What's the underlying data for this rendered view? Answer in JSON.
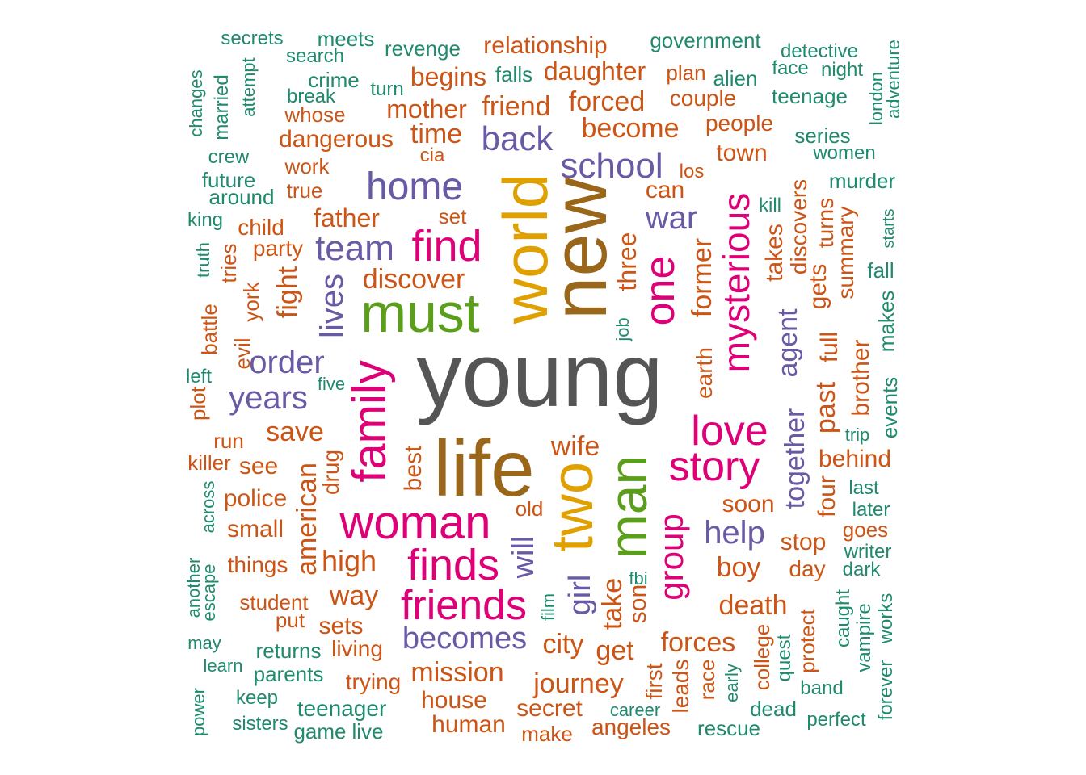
{
  "palette": {
    "gray": "#555555",
    "brown": "#99661a",
    "gold": "#e0a000",
    "green": "#5a9e1c",
    "magenta": "#dd0077",
    "purple": "#6a5aa5",
    "orange": "#cc5515",
    "teal": "#1f8a6e"
  },
  "words": [
    {
      "text": "young",
      "color": "gray"
    },
    {
      "text": "life",
      "color": "brown"
    },
    {
      "text": "new",
      "color": "brown"
    },
    {
      "text": "world",
      "color": "gold"
    },
    {
      "text": "two",
      "color": "gold"
    },
    {
      "text": "must",
      "color": "green"
    },
    {
      "text": "man",
      "color": "green"
    },
    {
      "text": "family",
      "color": "magenta"
    },
    {
      "text": "woman",
      "color": "magenta"
    },
    {
      "text": "find",
      "color": "magenta"
    },
    {
      "text": "friends",
      "color": "magenta"
    },
    {
      "text": "finds",
      "color": "magenta"
    },
    {
      "text": "story",
      "color": "magenta"
    },
    {
      "text": "love",
      "color": "magenta"
    },
    {
      "text": "one",
      "color": "magenta"
    },
    {
      "text": "mysterious",
      "color": "magenta"
    },
    {
      "text": "group",
      "color": "magenta"
    },
    {
      "text": "home",
      "color": "purple"
    },
    {
      "text": "school",
      "color": "purple"
    },
    {
      "text": "back",
      "color": "purple"
    },
    {
      "text": "team",
      "color": "purple"
    },
    {
      "text": "war",
      "color": "purple"
    },
    {
      "text": "order",
      "color": "purple"
    },
    {
      "text": "years",
      "color": "purple"
    },
    {
      "text": "lives",
      "color": "purple"
    },
    {
      "text": "becomes",
      "color": "purple"
    },
    {
      "text": "help",
      "color": "purple"
    },
    {
      "text": "will",
      "color": "purple"
    },
    {
      "text": "girl",
      "color": "purple"
    },
    {
      "text": "together",
      "color": "purple"
    },
    {
      "text": "agent",
      "color": "purple"
    },
    {
      "text": "relationship",
      "color": "orange"
    },
    {
      "text": "daughter",
      "color": "orange"
    },
    {
      "text": "begins",
      "color": "orange"
    },
    {
      "text": "mother",
      "color": "orange"
    },
    {
      "text": "friend",
      "color": "orange"
    },
    {
      "text": "forced",
      "color": "orange"
    },
    {
      "text": "become",
      "color": "orange"
    },
    {
      "text": "time",
      "color": "orange"
    },
    {
      "text": "dangerous",
      "color": "orange"
    },
    {
      "text": "whose",
      "color": "orange"
    },
    {
      "text": "work",
      "color": "orange"
    },
    {
      "text": "true",
      "color": "orange"
    },
    {
      "text": "father",
      "color": "orange"
    },
    {
      "text": "child",
      "color": "orange"
    },
    {
      "text": "party",
      "color": "orange"
    },
    {
      "text": "set",
      "color": "orange"
    },
    {
      "text": "discover",
      "color": "orange"
    },
    {
      "text": "can",
      "color": "orange"
    },
    {
      "text": "town",
      "color": "orange"
    },
    {
      "text": "plan",
      "color": "orange"
    },
    {
      "text": "couple",
      "color": "orange"
    },
    {
      "text": "people",
      "color": "orange"
    },
    {
      "text": "los",
      "color": "orange"
    },
    {
      "text": "cia",
      "color": "orange"
    },
    {
      "text": "three",
      "color": "orange"
    },
    {
      "text": "former",
      "color": "orange"
    },
    {
      "text": "fight",
      "color": "orange"
    },
    {
      "text": "takes",
      "color": "orange"
    },
    {
      "text": "discovers",
      "color": "orange"
    },
    {
      "text": "turns",
      "color": "orange"
    },
    {
      "text": "gets",
      "color": "orange"
    },
    {
      "text": "summary",
      "color": "orange"
    },
    {
      "text": "save",
      "color": "orange"
    },
    {
      "text": "wife",
      "color": "orange"
    },
    {
      "text": "earth",
      "color": "orange"
    },
    {
      "text": "full",
      "color": "orange"
    },
    {
      "text": "past",
      "color": "orange"
    },
    {
      "text": "brother",
      "color": "orange"
    },
    {
      "text": "behind",
      "color": "orange"
    },
    {
      "text": "four",
      "color": "orange"
    },
    {
      "text": "soon",
      "color": "orange"
    },
    {
      "text": "stop",
      "color": "orange"
    },
    {
      "text": "boy",
      "color": "orange"
    },
    {
      "text": "day",
      "color": "orange"
    },
    {
      "text": "death",
      "color": "orange"
    },
    {
      "text": "see",
      "color": "orange"
    },
    {
      "text": "police",
      "color": "orange"
    },
    {
      "text": "small",
      "color": "orange"
    },
    {
      "text": "things",
      "color": "orange"
    },
    {
      "text": "high",
      "color": "orange"
    },
    {
      "text": "way",
      "color": "orange"
    },
    {
      "text": "sets",
      "color": "orange"
    },
    {
      "text": "american",
      "color": "orange"
    },
    {
      "text": "drug",
      "color": "orange"
    },
    {
      "text": "best",
      "color": "orange"
    },
    {
      "text": "old",
      "color": "orange"
    },
    {
      "text": "city",
      "color": "orange"
    },
    {
      "text": "take",
      "color": "orange"
    },
    {
      "text": "son",
      "color": "orange"
    },
    {
      "text": "get",
      "color": "orange"
    },
    {
      "text": "forces",
      "color": "orange"
    },
    {
      "text": "mission",
      "color": "orange"
    },
    {
      "text": "journey",
      "color": "orange"
    },
    {
      "text": "house",
      "color": "orange"
    },
    {
      "text": "secret",
      "color": "orange"
    },
    {
      "text": "human",
      "color": "orange"
    },
    {
      "text": "make",
      "color": "orange"
    },
    {
      "text": "angeles",
      "color": "orange"
    },
    {
      "text": "living",
      "color": "orange"
    },
    {
      "text": "trying",
      "color": "orange"
    },
    {
      "text": "put",
      "color": "orange"
    },
    {
      "text": "student",
      "color": "orange"
    },
    {
      "text": "run",
      "color": "orange"
    },
    {
      "text": "killer",
      "color": "orange"
    },
    {
      "text": "plot",
      "color": "orange"
    },
    {
      "text": "evil",
      "color": "orange"
    },
    {
      "text": "york",
      "color": "orange"
    },
    {
      "text": "tries",
      "color": "orange"
    },
    {
      "text": "battle",
      "color": "orange"
    },
    {
      "text": "first",
      "color": "orange"
    },
    {
      "text": "leads",
      "color": "orange"
    },
    {
      "text": "race",
      "color": "orange"
    },
    {
      "text": "college",
      "color": "orange"
    },
    {
      "text": "protect",
      "color": "orange"
    },
    {
      "text": "goes",
      "color": "orange"
    },
    {
      "text": "secrets",
      "color": "teal"
    },
    {
      "text": "meets",
      "color": "teal"
    },
    {
      "text": "revenge",
      "color": "teal"
    },
    {
      "text": "government",
      "color": "teal"
    },
    {
      "text": "detective",
      "color": "teal"
    },
    {
      "text": "search",
      "color": "teal"
    },
    {
      "text": "face",
      "color": "teal"
    },
    {
      "text": "night",
      "color": "teal"
    },
    {
      "text": "falls",
      "color": "teal"
    },
    {
      "text": "alien",
      "color": "teal"
    },
    {
      "text": "crime",
      "color": "teal"
    },
    {
      "text": "turn",
      "color": "teal"
    },
    {
      "text": "break",
      "color": "teal"
    },
    {
      "text": "teenage",
      "color": "teal"
    },
    {
      "text": "series",
      "color": "teal"
    },
    {
      "text": "women",
      "color": "teal"
    },
    {
      "text": "crew",
      "color": "teal"
    },
    {
      "text": "future",
      "color": "teal"
    },
    {
      "text": "around",
      "color": "teal"
    },
    {
      "text": "murder",
      "color": "teal"
    },
    {
      "text": "king",
      "color": "teal"
    },
    {
      "text": "kill",
      "color": "teal"
    },
    {
      "text": "fall",
      "color": "teal"
    },
    {
      "text": "makes",
      "color": "teal"
    },
    {
      "text": "events",
      "color": "teal"
    },
    {
      "text": "trip",
      "color": "teal"
    },
    {
      "text": "left",
      "color": "teal"
    },
    {
      "text": "five",
      "color": "teal"
    },
    {
      "text": "last",
      "color": "teal"
    },
    {
      "text": "later",
      "color": "teal"
    },
    {
      "text": "writer",
      "color": "teal"
    },
    {
      "text": "dark",
      "color": "teal"
    },
    {
      "text": "fbi",
      "color": "teal"
    },
    {
      "text": "returns",
      "color": "teal"
    },
    {
      "text": "learn",
      "color": "teal"
    },
    {
      "text": "parents",
      "color": "teal"
    },
    {
      "text": "may",
      "color": "teal"
    },
    {
      "text": "keep",
      "color": "teal"
    },
    {
      "text": "teenager",
      "color": "teal"
    },
    {
      "text": "sisters",
      "color": "teal"
    },
    {
      "text": "game",
      "color": "teal"
    },
    {
      "text": "live",
      "color": "teal"
    },
    {
      "text": "career",
      "color": "teal"
    },
    {
      "text": "rescue",
      "color": "teal"
    },
    {
      "text": "dead",
      "color": "teal"
    },
    {
      "text": "band",
      "color": "teal"
    },
    {
      "text": "perfect",
      "color": "teal"
    },
    {
      "text": "changes",
      "color": "teal"
    },
    {
      "text": "married",
      "color": "teal"
    },
    {
      "text": "attempt",
      "color": "teal"
    },
    {
      "text": "london",
      "color": "teal"
    },
    {
      "text": "adventure",
      "color": "teal"
    },
    {
      "text": "starts",
      "color": "teal"
    },
    {
      "text": "truth",
      "color": "teal"
    },
    {
      "text": "job",
      "color": "teal"
    },
    {
      "text": "across",
      "color": "teal"
    },
    {
      "text": "another",
      "color": "teal"
    },
    {
      "text": "escape",
      "color": "teal"
    },
    {
      "text": "power",
      "color": "teal"
    },
    {
      "text": "film",
      "color": "teal"
    },
    {
      "text": "early",
      "color": "teal"
    },
    {
      "text": "quest",
      "color": "teal"
    },
    {
      "text": "caught",
      "color": "teal"
    },
    {
      "text": "vampire",
      "color": "teal"
    },
    {
      "text": "forever",
      "color": "teal"
    },
    {
      "text": "works",
      "color": "teal"
    }
  ]
}
